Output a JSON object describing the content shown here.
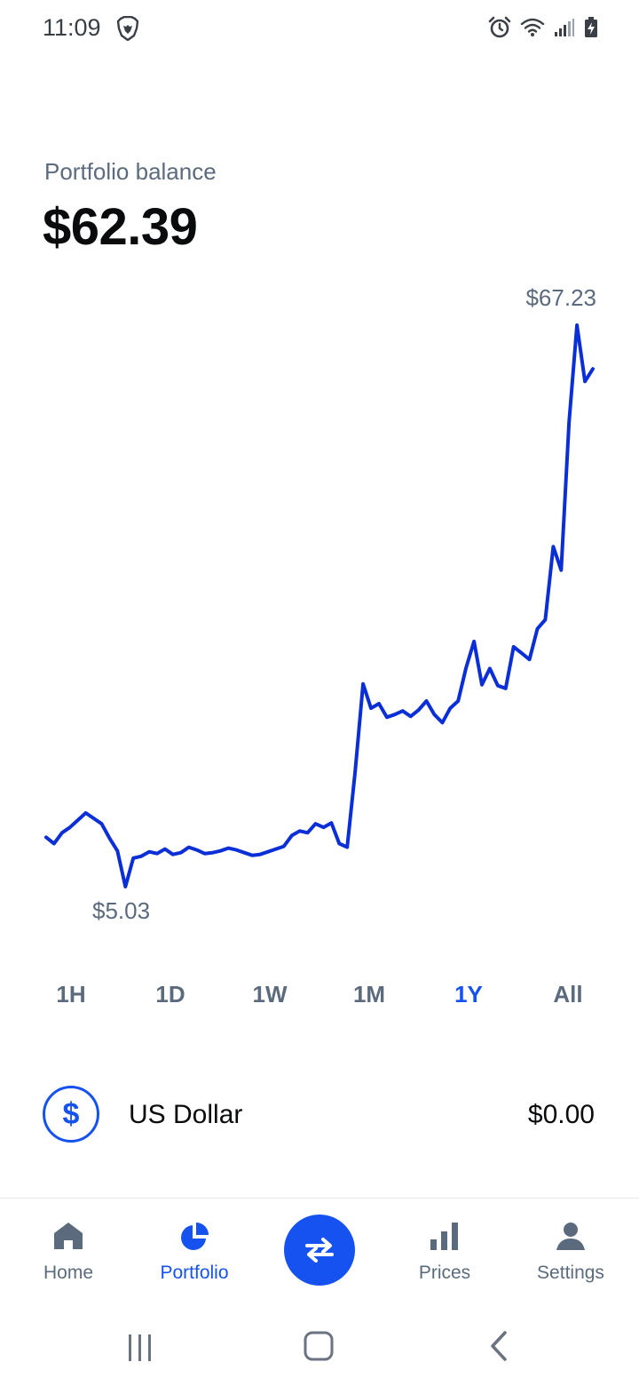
{
  "status_bar": {
    "time": "11:09",
    "icons": [
      "brave-lion-icon",
      "alarm-icon",
      "wifi-icon",
      "signal-icon",
      "battery-charging-icon"
    ]
  },
  "header": {
    "balance_label": "Portfolio balance",
    "balance_value": "$62.39"
  },
  "chart_data": {
    "type": "line",
    "title": "",
    "xlabel": "",
    "ylabel": "",
    "range": "1Y",
    "ylim": [
      5.03,
      67.23
    ],
    "max_label": "$67.23",
    "min_label": "$5.03",
    "grid": false,
    "legend": "none",
    "color": "#0b2fd6",
    "series": [
      {
        "values": [
          10.5,
          9.8,
          11.0,
          11.6,
          12.4,
          13.2,
          12.6,
          12.0,
          10.4,
          9.0,
          5.03,
          8.2,
          8.4,
          8.9,
          8.7,
          9.2,
          8.6,
          8.8,
          9.4,
          9.1,
          8.7,
          8.8,
          9.0,
          9.3,
          9.1,
          8.8,
          8.5,
          8.6,
          8.9,
          9.2,
          9.5,
          10.7,
          11.2,
          11.0,
          12.0,
          11.6,
          12.1,
          9.8,
          9.4,
          17.8,
          27.5,
          24.8,
          25.3,
          23.8,
          24.1,
          24.5,
          23.9,
          24.6,
          25.6,
          24.1,
          23.2,
          24.8,
          25.6,
          29.3,
          32.2,
          27.4,
          29.2,
          27.3,
          27.0,
          31.6,
          30.9,
          30.2,
          33.6,
          34.6,
          42.7,
          40.1,
          56.5,
          67.23,
          61.0,
          62.39
        ]
      }
    ]
  },
  "range_tabs": {
    "items": [
      {
        "label": "1H"
      },
      {
        "label": "1D"
      },
      {
        "label": "1W"
      },
      {
        "label": "1M"
      },
      {
        "label": "1Y"
      },
      {
        "label": "All"
      }
    ],
    "selected": "1Y"
  },
  "asset": {
    "icon_symbol": "$",
    "name": "US Dollar",
    "value": "$0.00"
  },
  "bottom_nav": {
    "items": [
      {
        "label": "Home",
        "icon": "home-icon"
      },
      {
        "label": "Portfolio",
        "icon": "pie-chart-icon"
      },
      {
        "label": "Prices",
        "icon": "bar-chart-icon"
      },
      {
        "label": "Settings",
        "icon": "user-icon"
      }
    ],
    "active": "Portfolio",
    "center_icon": "swap-arrows-icon"
  },
  "colors": {
    "accent": "#1652f0",
    "line": "#0b2fd6",
    "muted_text": "#5b6b7d",
    "primary_text": "#0a0b0d"
  }
}
